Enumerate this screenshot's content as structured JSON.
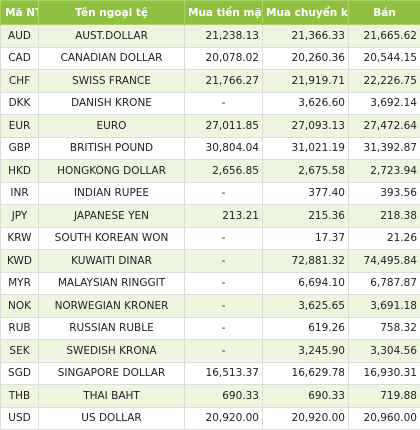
{
  "headers": {
    "code": "Mã NT",
    "name": "Tên ngoại tệ",
    "cash_buy": "Mua tiền mặt",
    "transfer_buy": "Mua chuyển khoản",
    "sell": "Bán"
  },
  "colors": {
    "header_bg": "#8fc040",
    "header_text": "#ffffff",
    "stripe_row_bg": "#eef5df"
  },
  "rows": [
    {
      "code": "AUD",
      "name": "AUST.DOLLAR",
      "cash_buy": "21,238.13",
      "transfer_buy": "21,366.33",
      "sell": "21,665.62"
    },
    {
      "code": "CAD",
      "name": "CANADIAN DOLLAR",
      "cash_buy": "20,078.02",
      "transfer_buy": "20,260.36",
      "sell": "20,544.15"
    },
    {
      "code": "CHF",
      "name": "SWISS FRANCE",
      "cash_buy": "21,766.27",
      "transfer_buy": "21,919.71",
      "sell": "22,226.75"
    },
    {
      "code": "DKK",
      "name": "DANISH KRONE",
      "cash_buy": "-",
      "transfer_buy": "3,626.60",
      "sell": "3,692.14"
    },
    {
      "code": "EUR",
      "name": "EURO",
      "cash_buy": "27,011.85",
      "transfer_buy": "27,093.13",
      "sell": "27,472.64"
    },
    {
      "code": "GBP",
      "name": "BRITISH POUND",
      "cash_buy": "30,804.04",
      "transfer_buy": "31,021.19",
      "sell": "31,392.87"
    },
    {
      "code": "HKD",
      "name": "HONGKONG DOLLAR",
      "cash_buy": "2,656.85",
      "transfer_buy": "2,675.58",
      "sell": "2,723.94"
    },
    {
      "code": "INR",
      "name": "INDIAN RUPEE",
      "cash_buy": "-",
      "transfer_buy": "377.40",
      "sell": "393.56"
    },
    {
      "code": "JPY",
      "name": "JAPANESE YEN",
      "cash_buy": "213.21",
      "transfer_buy": "215.36",
      "sell": "218.38"
    },
    {
      "code": "KRW",
      "name": "SOUTH KOREAN WON",
      "cash_buy": "-",
      "transfer_buy": "17.37",
      "sell": "21.26"
    },
    {
      "code": "KWD",
      "name": "KUWAITI DINAR",
      "cash_buy": "-",
      "transfer_buy": "72,881.32",
      "sell": "74,495.84"
    },
    {
      "code": "MYR",
      "name": "MALAYSIAN RINGGIT",
      "cash_buy": "-",
      "transfer_buy": "6,694.10",
      "sell": "6,787.87"
    },
    {
      "code": "NOK",
      "name": "NORWEGIAN KRONER",
      "cash_buy": "-",
      "transfer_buy": "3,625.65",
      "sell": "3,691.18"
    },
    {
      "code": "RUB",
      "name": "RUSSIAN RUBLE",
      "cash_buy": "-",
      "transfer_buy": "619.26",
      "sell": "758.32"
    },
    {
      "code": "SEK",
      "name": "SWEDISH KRONA",
      "cash_buy": "-",
      "transfer_buy": "3,245.90",
      "sell": "3,304.56"
    },
    {
      "code": "SGD",
      "name": "SINGAPORE DOLLAR",
      "cash_buy": "16,513.37",
      "transfer_buy": "16,629.78",
      "sell": "16,930.31"
    },
    {
      "code": "THB",
      "name": "THAI BAHT",
      "cash_buy": "690.33",
      "transfer_buy": "690.33",
      "sell": "719.88"
    },
    {
      "code": "USD",
      "name": "US DOLLAR",
      "cash_buy": "20,920.00",
      "transfer_buy": "20,920.00",
      "sell": "20,960.00"
    }
  ]
}
